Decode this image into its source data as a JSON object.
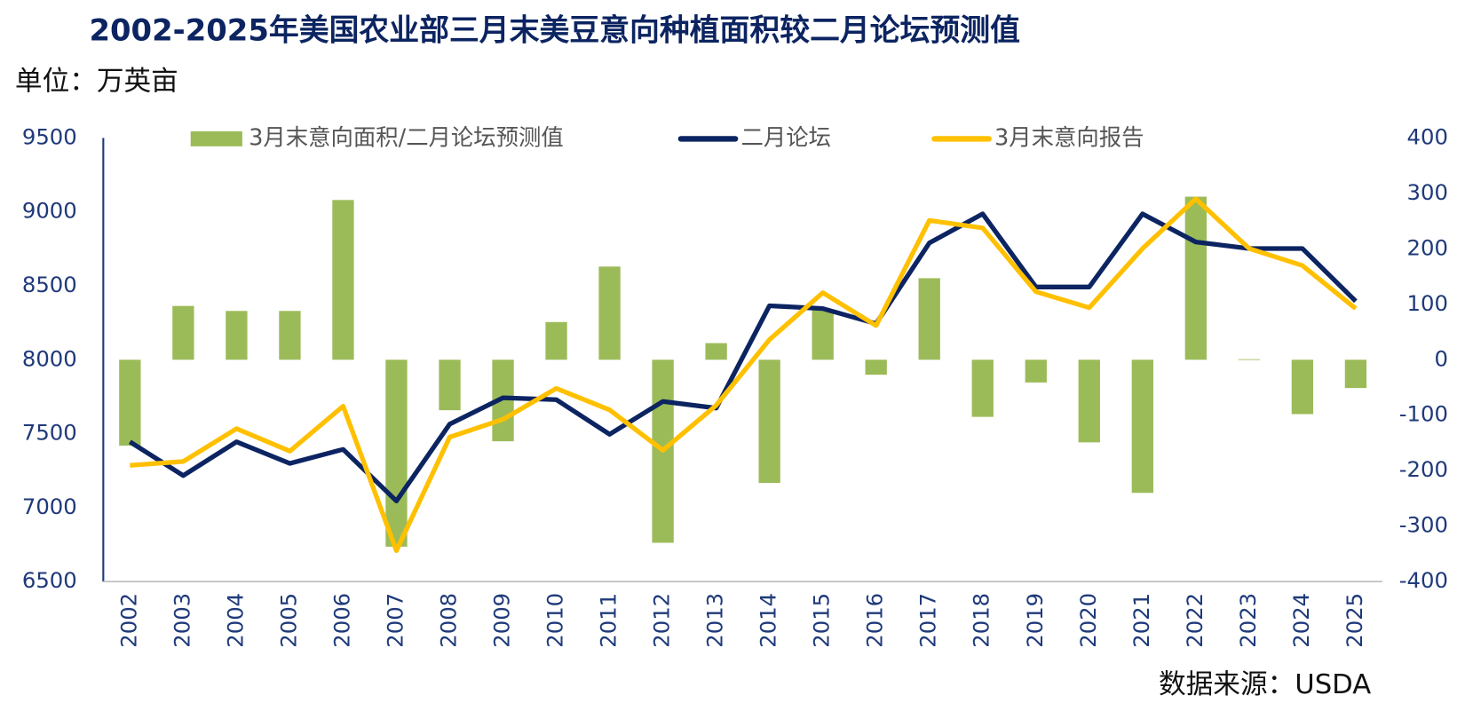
{
  "chart_data": {
    "type": "bar_line",
    "title": "2002-2025年美国农业部三月末美豆意向种植面积较二月论坛预测值",
    "unit": "单位：万英亩",
    "source": "数据来源：USDA",
    "categories": [
      "2002",
      "2003",
      "2004",
      "2005",
      "2006",
      "2007",
      "2008",
      "2009",
      "2010",
      "2011",
      "2012",
      "2013",
      "2014",
      "2015",
      "2016",
      "2017",
      "2018",
      "2019",
      "2020",
      "2021",
      "2022",
      "2023",
      "2024",
      "2025"
    ],
    "ylim": [
      6500,
      9500
    ],
    "yticks": [
      6500,
      7000,
      7500,
      8000,
      8500,
      9000,
      9500
    ],
    "y2lim": [
      -400,
      400
    ],
    "y2ticks": [
      -400,
      -300,
      -200,
      -100,
      0,
      100,
      200,
      300,
      400
    ],
    "legend": "top",
    "series": [
      {
        "name": "3月末意向面积/二月论坛预测值",
        "type": "bar",
        "axis": "y2",
        "color": "#9bbb59",
        "values": [
          -155,
          97,
          88,
          88,
          288,
          -337,
          -91,
          -147,
          68,
          168,
          -330,
          30,
          -222,
          90,
          -27,
          147,
          -103,
          -41,
          -149,
          -240,
          294,
          1,
          -98,
          -51
        ]
      },
      {
        "name": "二月论坛",
        "type": "line",
        "color": "#0c2461",
        "values": [
          7445,
          7217,
          7445,
          7299,
          7394,
          7045,
          7565,
          7743,
          7730,
          7496,
          7718,
          7673,
          8365,
          8346,
          8244,
          8790,
          8986,
          8492,
          8492,
          8986,
          8796,
          8752,
          8752,
          8396
        ]
      },
      {
        "name": "3月末意向报告",
        "type": "line",
        "color": "#ffc000",
        "values": [
          7286,
          7312,
          7534,
          7382,
          7686,
          6709,
          7477,
          7597,
          7806,
          7661,
          7388,
          7692,
          8136,
          8453,
          8231,
          8942,
          8891,
          8460,
          8352,
          8752,
          9088,
          8752,
          8637,
          8346
        ]
      }
    ]
  }
}
